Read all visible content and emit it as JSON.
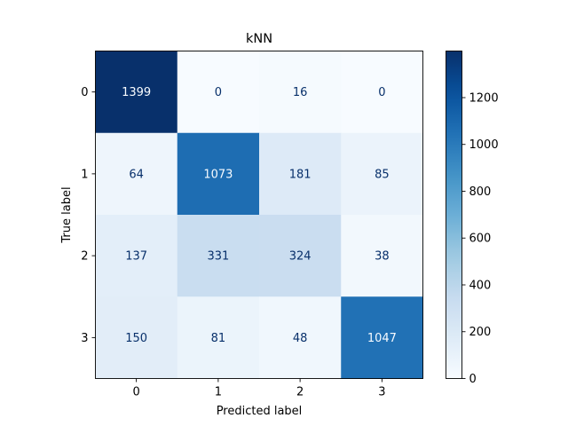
{
  "chart_data": {
    "type": "heatmap",
    "title": "kNN",
    "xlabel": "Predicted label",
    "ylabel": "True label",
    "x_categories": [
      "0",
      "1",
      "2",
      "3"
    ],
    "y_categories": [
      "0",
      "1",
      "2",
      "3"
    ],
    "values": [
      [
        1399,
        0,
        16,
        0
      ],
      [
        64,
        1073,
        181,
        85
      ],
      [
        137,
        331,
        324,
        38
      ],
      [
        150,
        81,
        48,
        1047
      ]
    ],
    "colormap": "Blues",
    "colorbar": {
      "range": [
        0,
        1399
      ],
      "ticks": [
        0,
        200,
        400,
        600,
        800,
        1000,
        1200
      ]
    },
    "grid": false
  }
}
